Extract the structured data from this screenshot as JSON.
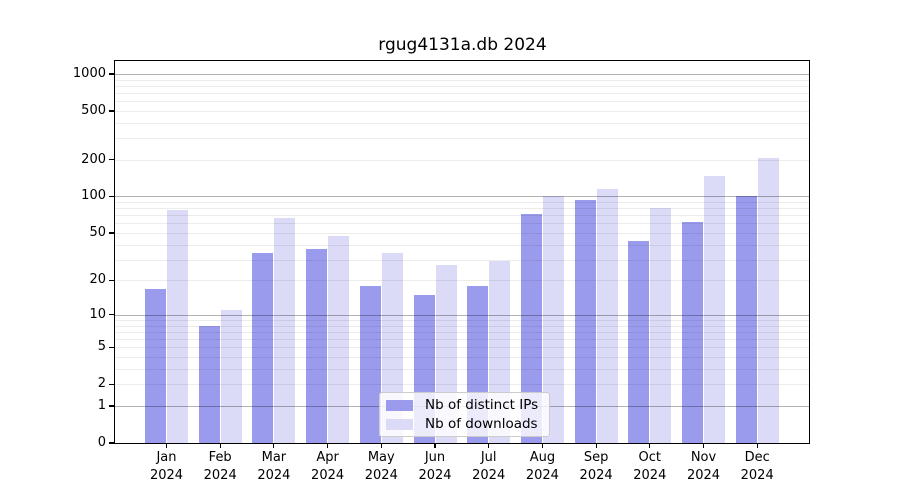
{
  "title": "rgug4131a.db 2024",
  "chart_data": {
    "type": "bar",
    "title": "rgug4131a.db 2024",
    "categories": [
      "Jan",
      "Feb",
      "Mar",
      "Apr",
      "May",
      "Jun",
      "Jul",
      "Aug",
      "Sep",
      "Oct",
      "Nov",
      "Dec"
    ],
    "year": "2024",
    "series": [
      {
        "name": "Nb of distinct IPs",
        "color": "#9b9bee",
        "values": [
          17,
          8,
          34,
          37,
          18,
          15,
          18,
          72,
          93,
          43,
          62,
          100
        ]
      },
      {
        "name": "Nb of downloads",
        "color": "#dbdbf8",
        "values": [
          77,
          11,
          67,
          47,
          34,
          27,
          29,
          100,
          115,
          80,
          147,
          205
        ]
      }
    ],
    "xlabel": "",
    "ylabel": "",
    "y_scale": "log10(1+v)",
    "y_ticks": [
      0,
      1,
      2,
      5,
      10,
      20,
      50,
      100,
      200,
      500,
      1000
    ],
    "ylim": [
      0,
      1270
    ],
    "grid": "on",
    "legend_position": "bottom-center"
  },
  "colors": {
    "bar_distinct_ips": "#9b9bee",
    "bar_downloads": "#dbdbf8",
    "grid_major": "#b3b3b3",
    "grid_minor": "#ececec",
    "axis": "#000000",
    "legend_border": "#cccccc",
    "background": "#ffffff"
  }
}
